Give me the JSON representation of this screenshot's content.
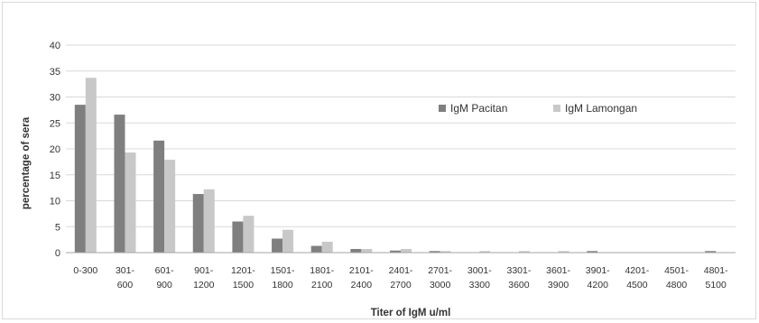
{
  "chart_data": {
    "type": "bar",
    "title": "",
    "xlabel": "Titer of IgM u/ml",
    "ylabel": "percentage of sera",
    "ylim": [
      0,
      40
    ],
    "yticks": [
      "0",
      "5",
      "10",
      "15",
      "20",
      "25",
      "30",
      "35",
      "40"
    ],
    "grid": true,
    "legend_position": "top-right",
    "categories": [
      [
        "0-300",
        ""
      ],
      [
        "301-",
        "600"
      ],
      [
        "601-",
        "900"
      ],
      [
        "901-",
        "1200"
      ],
      [
        "1201-",
        "1500"
      ],
      [
        "1501-",
        "1800"
      ],
      [
        "1801-",
        "2100"
      ],
      [
        "2101-",
        "2400"
      ],
      [
        "2401-",
        "2700"
      ],
      [
        "2701-",
        "3000"
      ],
      [
        "3001-",
        "3300"
      ],
      [
        "3301-",
        "3600"
      ],
      [
        "3601-",
        "3900"
      ],
      [
        "3901-",
        "4200"
      ],
      [
        "4201-",
        "4500"
      ],
      [
        "4501-",
        "4800"
      ],
      [
        "4801-",
        "5100"
      ]
    ],
    "series": [
      {
        "name": "IgM Pacitan",
        "color": "#7f7f7f",
        "values": [
          28.5,
          26.6,
          21.6,
          11.3,
          6.0,
          2.7,
          1.3,
          0.7,
          0.4,
          0.3,
          0,
          0,
          0,
          0.3,
          0,
          0,
          0.3
        ]
      },
      {
        "name": "IgM Lamongan",
        "color": "#c8c8c8",
        "values": [
          33.7,
          19.3,
          17.9,
          12.2,
          7.1,
          4.4,
          2.1,
          0.7,
          0.7,
          0.3,
          0.3,
          0.3,
          0.3,
          0,
          0,
          0,
          0
        ]
      }
    ]
  }
}
